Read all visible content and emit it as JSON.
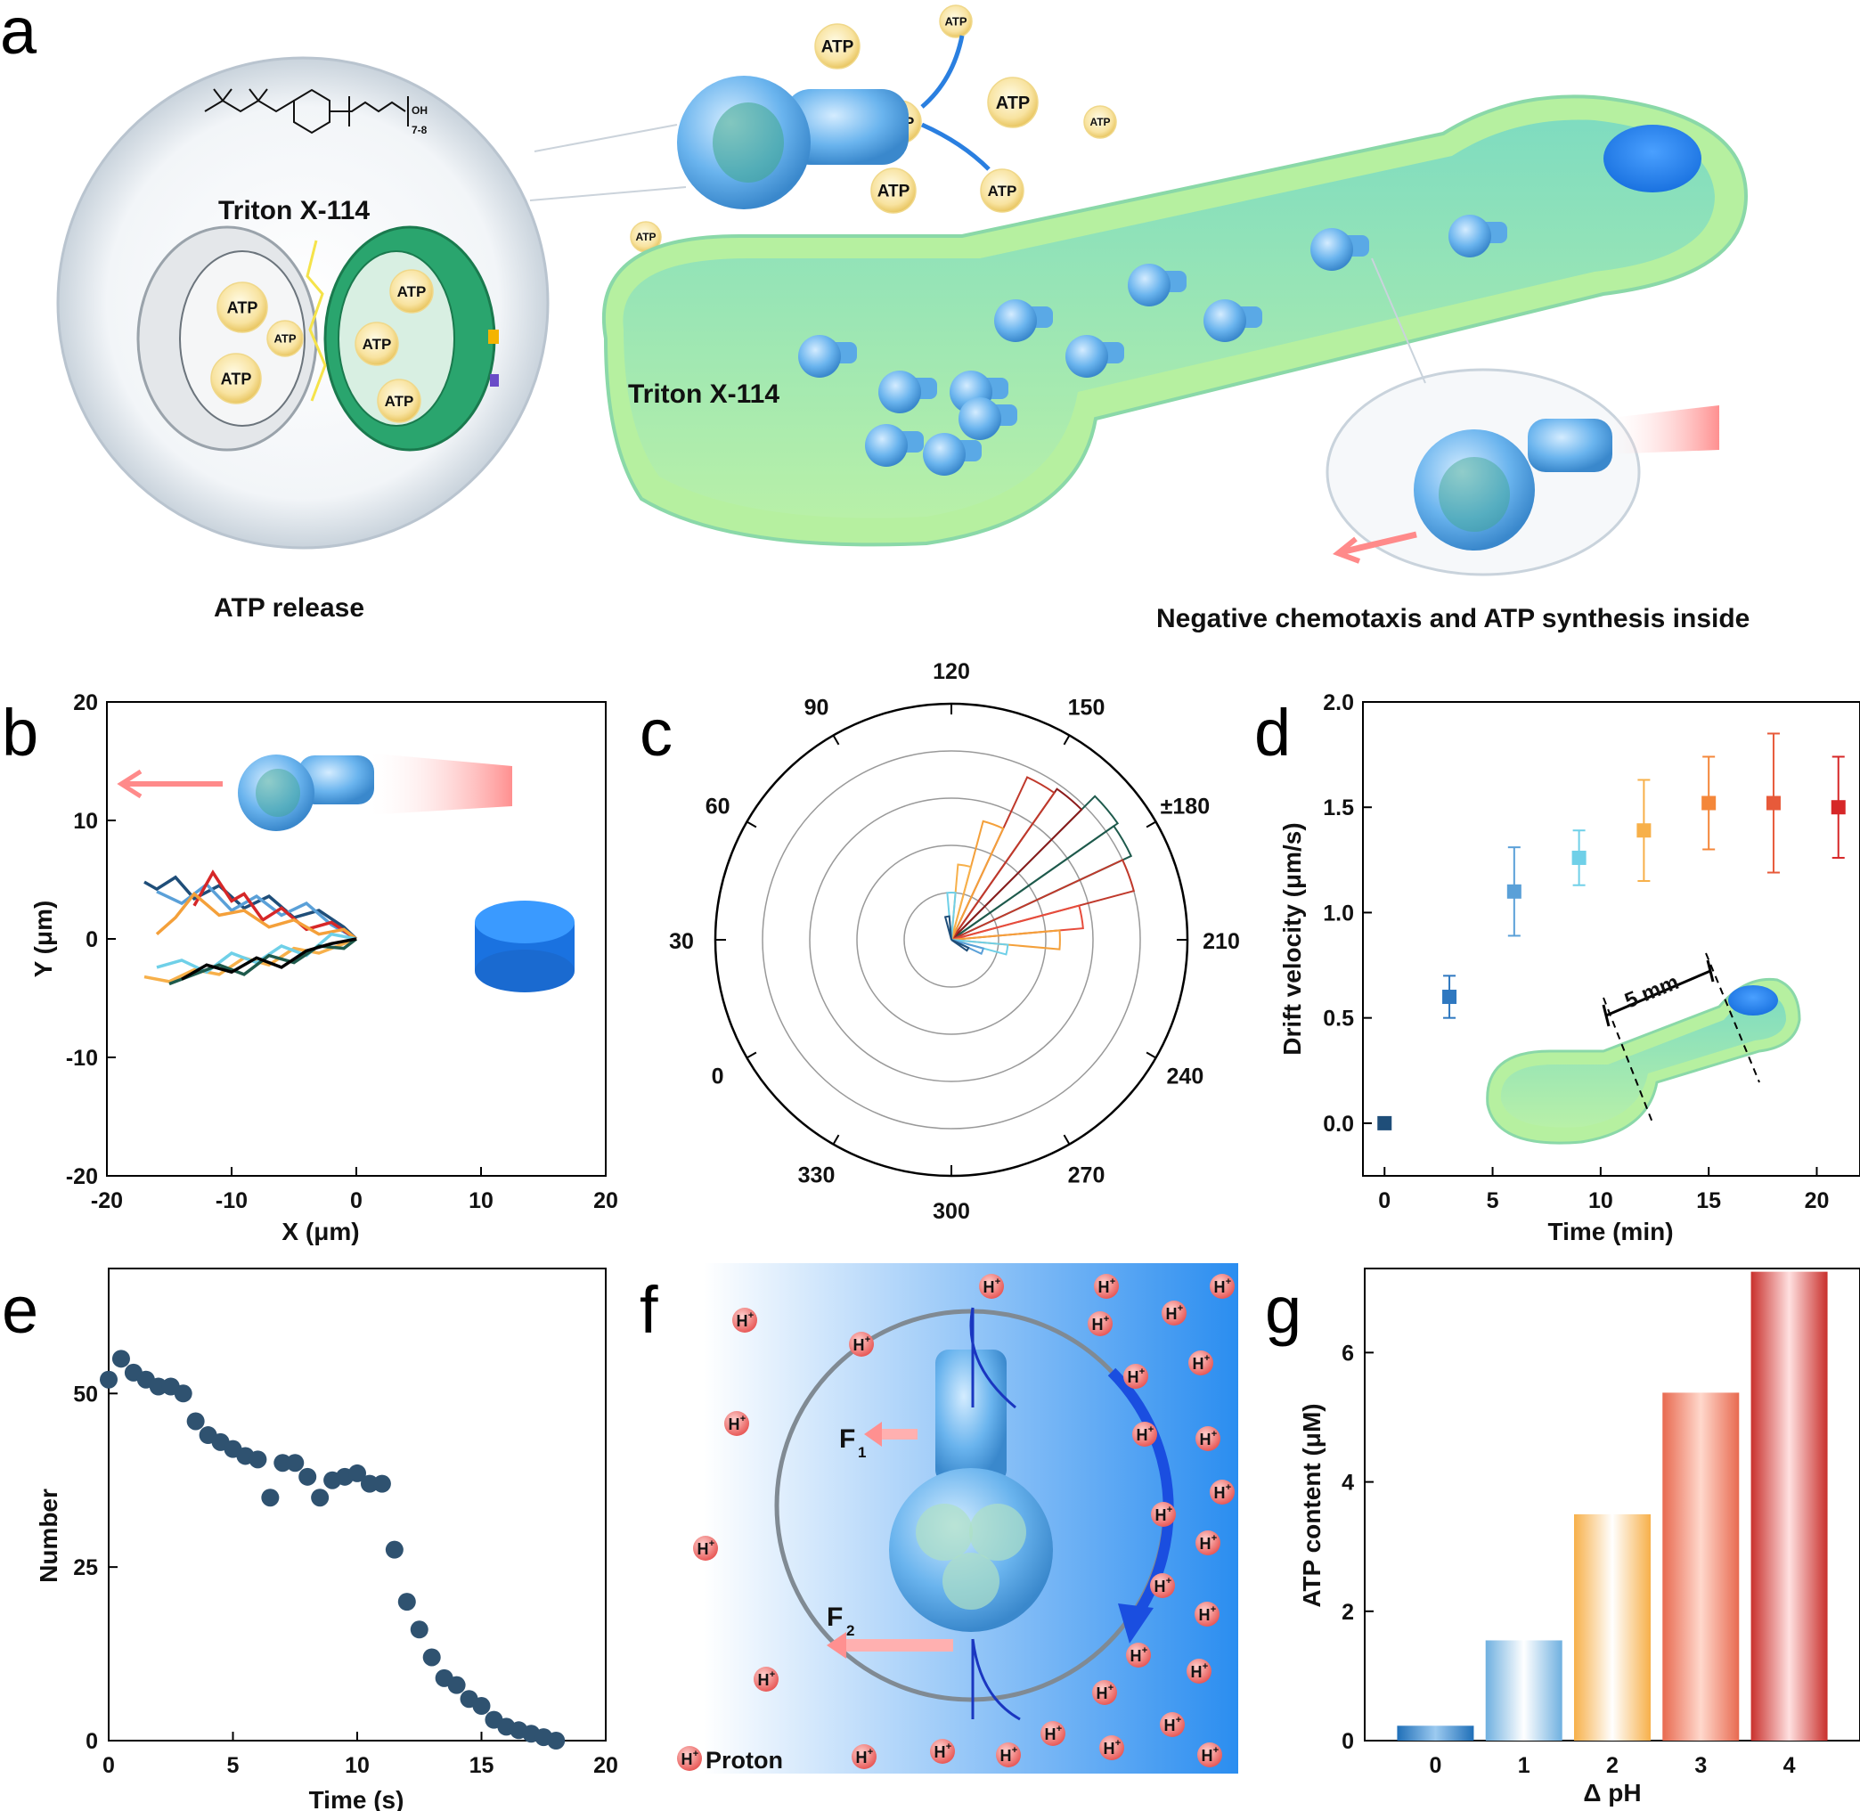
{
  "panels": {
    "a": {
      "letter": "a",
      "molecule_label": "Triton X-114",
      "molecule_oh": "OH",
      "molecule_repeat": "7-8",
      "left_caption": "ATP release",
      "channel_label": "Triton X-114",
      "right_caption": "Negative chemotaxis and ATP synthesis inside",
      "atp_label": "ATP"
    },
    "b": {
      "letter": "b"
    },
    "c": {
      "letter": "c"
    },
    "d": {
      "letter": "d",
      "inset_label": "5 mm"
    },
    "e": {
      "letter": "e"
    },
    "f": {
      "letter": "f",
      "force1": "F",
      "force1_sub": "1",
      "force2": "F",
      "force2_sub": "2",
      "proton_symbol": "H",
      "proton_charge": "+",
      "legend_label": "Proton"
    },
    "g": {
      "letter": "g"
    }
  },
  "colors": {
    "motor_blue": "#5aa9e6",
    "channel_green": "#8fe0b0",
    "gradient_blue": "#2a8df0",
    "proton_red": "#f07a78",
    "dark_dot": "#2f5270"
  },
  "chart_data": [
    {
      "panel": "b",
      "type": "line",
      "xlabel": "X (μm)",
      "ylabel": "Y (μm)",
      "xlim": [
        -20,
        20
      ],
      "ylim": [
        -20,
        20
      ],
      "xticks": [
        "-20",
        "-10",
        "0",
        "10",
        "20"
      ],
      "yticks": [
        "20",
        "10",
        "0",
        "-10",
        "-20"
      ],
      "series": [
        {
          "color": "#1f4e79",
          "x": [
            -17,
            -16,
            -14.5,
            -13,
            -11,
            -9,
            -7,
            -5,
            -3,
            -1,
            0
          ],
          "y": [
            4.8,
            4.2,
            5.2,
            3.4,
            4.5,
            2.6,
            3.6,
            1.8,
            2.4,
            1.0,
            0
          ]
        },
        {
          "color": "#5aa0d8",
          "x": [
            -16,
            -14,
            -12,
            -10,
            -8,
            -6,
            -4,
            -2,
            0
          ],
          "y": [
            4.0,
            3.0,
            4.6,
            2.4,
            3.6,
            2.0,
            3.0,
            1.2,
            0
          ]
        },
        {
          "color": "#d62728",
          "x": [
            -13,
            -11.5,
            -10,
            -9,
            -7.5,
            -6,
            -4,
            -2,
            0
          ],
          "y": [
            2.8,
            5.6,
            3.2,
            3.8,
            1.6,
            2.6,
            0.8,
            1.4,
            0
          ]
        },
        {
          "color": "#f4a03a",
          "x": [
            -16,
            -14.5,
            -13,
            -11,
            -9,
            -7,
            -5,
            -3,
            -1,
            0
          ],
          "y": [
            0.4,
            1.8,
            3.8,
            2.0,
            2.4,
            1.0,
            1.6,
            0.4,
            0.8,
            0
          ]
        },
        {
          "color": "#f7b04a",
          "x": [
            -17,
            -15,
            -13,
            -11,
            -9,
            -7,
            -5,
            -3,
            -1,
            0
          ],
          "y": [
            -3.2,
            -3.6,
            -2.6,
            -3.0,
            -1.6,
            -2.2,
            -0.8,
            -1.2,
            -0.4,
            0
          ]
        },
        {
          "color": "#6fd0e8",
          "x": [
            -16,
            -14,
            -12,
            -10,
            -8,
            -6,
            -4,
            -2,
            0
          ],
          "y": [
            -2.4,
            -1.8,
            -2.8,
            -1.2,
            -2.0,
            -0.6,
            -1.4,
            0.4,
            0
          ]
        },
        {
          "color": "#1e5a4c",
          "x": [
            -15,
            -13,
            -11,
            -9,
            -7,
            -5,
            -3,
            -1,
            0
          ],
          "y": [
            -3.8,
            -3.0,
            -2.2,
            -3.0,
            -1.4,
            -2.0,
            -0.6,
            -0.8,
            0
          ]
        },
        {
          "color": "#000000",
          "x": [
            -14,
            -12,
            -10,
            -8,
            -6,
            -4,
            -2,
            0
          ],
          "y": [
            -3.4,
            -2.2,
            -2.8,
            -1.6,
            -2.4,
            -1.0,
            -0.4,
            0
          ]
        }
      ]
    },
    {
      "panel": "c",
      "type": "polar-histogram",
      "angle_labels": [
        "120",
        "150",
        "±180",
        "210",
        "240",
        "270",
        "300",
        "330",
        "0",
        "30",
        "60",
        "90"
      ],
      "bins": [
        {
          "angle_from": 175,
          "angle_to": 185,
          "r": 4.2,
          "color": "#1e5a4c"
        },
        {
          "angle_from": 165,
          "angle_to": 175,
          "r": 4.3,
          "color": "#1e5a4c"
        },
        {
          "angle_from": 155,
          "angle_to": 165,
          "r": 3.9,
          "color": "#8b1a1a"
        },
        {
          "angle_from": 185,
          "angle_to": 195,
          "r": 4.0,
          "color": "#c0392b"
        },
        {
          "angle_from": 145,
          "angle_to": 155,
          "r": 3.8,
          "color": "#c0392b"
        },
        {
          "angle_from": 195,
          "angle_to": 205,
          "r": 2.8,
          "color": "#e74c3c"
        },
        {
          "angle_from": 135,
          "angle_to": 145,
          "r": 2.6,
          "color": "#f4a03a"
        },
        {
          "angle_from": 205,
          "angle_to": 215,
          "r": 2.3,
          "color": "#f4a03a"
        },
        {
          "angle_from": 125,
          "angle_to": 135,
          "r": 1.6,
          "color": "#f7b04a"
        },
        {
          "angle_from": 215,
          "angle_to": 225,
          "r": 1.2,
          "color": "#6fd0e8"
        },
        {
          "angle_from": 115,
          "angle_to": 125,
          "r": 1.0,
          "color": "#6fd0e8"
        },
        {
          "angle_from": 225,
          "angle_to": 235,
          "r": 0.7,
          "color": "#5aa0d8"
        },
        {
          "angle_from": 105,
          "angle_to": 115,
          "r": 0.5,
          "color": "#1f4e79"
        },
        {
          "angle_from": 235,
          "angle_to": 245,
          "r": 0.4,
          "color": "#1f4e79"
        }
      ]
    },
    {
      "panel": "d",
      "type": "scatter",
      "xlabel": "Time (min)",
      "ylabel": "Drift velocity (μm/s)",
      "xlim": [
        -1,
        22
      ],
      "ylim": [
        -0.25,
        2.0
      ],
      "xticks": [
        "0",
        "5",
        "10",
        "15",
        "20"
      ],
      "yticks": [
        "0.0",
        "0.5",
        "1.0",
        "1.5",
        "2.0"
      ],
      "points": [
        {
          "x": 0,
          "y": 0.0,
          "err": 0.0,
          "color": "#1f4e79"
        },
        {
          "x": 3,
          "y": 0.6,
          "err": 0.1,
          "color": "#2f78c0"
        },
        {
          "x": 6,
          "y": 1.1,
          "err": 0.21,
          "color": "#5aa0d8"
        },
        {
          "x": 9,
          "y": 1.26,
          "err": 0.13,
          "color": "#6fd0e8"
        },
        {
          "x": 12,
          "y": 1.39,
          "err": 0.24,
          "color": "#f7b04a"
        },
        {
          "x": 15,
          "y": 1.52,
          "err": 0.22,
          "color": "#f4873a"
        },
        {
          "x": 18,
          "y": 1.52,
          "err": 0.33,
          "color": "#e75a3a"
        },
        {
          "x": 21,
          "y": 1.5,
          "err": 0.24,
          "color": "#d62728"
        }
      ]
    },
    {
      "panel": "e",
      "type": "scatter",
      "xlabel": "Time (s)",
      "ylabel": "Number",
      "xlim": [
        0,
        20
      ],
      "ylim": [
        0,
        68
      ],
      "xticks": [
        "0",
        "5",
        "10",
        "15",
        "20"
      ],
      "yticks": [
        "0",
        "25",
        "50"
      ],
      "x": [
        0,
        0.5,
        1,
        1.5,
        2,
        2.5,
        3,
        3.5,
        4,
        4.5,
        5,
        5.5,
        6,
        6.5,
        7,
        7.5,
        8,
        8.5,
        9,
        9.5,
        10,
        10.5,
        11,
        11.5,
        12,
        12.5,
        13,
        13.5,
        14,
        14.5,
        15,
        15.5,
        16,
        16.5,
        17,
        17.5,
        18
      ],
      "y": [
        52,
        55,
        53,
        52,
        51,
        51,
        50,
        46,
        44,
        43,
        42,
        41,
        40.5,
        35,
        40,
        40,
        38,
        35,
        37.5,
        38,
        38.5,
        37,
        37,
        27.5,
        20,
        16,
        12,
        9,
        8,
        6,
        5,
        3,
        2,
        1.5,
        1,
        0.5,
        0
      ]
    },
    {
      "panel": "g",
      "type": "bar",
      "xlabel": "Δ pH",
      "ylabel": "ATP content (μM)",
      "ylim": [
        0,
        7.3
      ],
      "yticks": [
        "0",
        "2",
        "4",
        "6"
      ],
      "categories": [
        "0",
        "1",
        "2",
        "3",
        "4"
      ],
      "values": [
        0.23,
        1.55,
        3.5,
        5.38,
        7.25
      ],
      "colors": [
        "#1f6fb8",
        "#6fb0e0",
        "#f7b04a",
        "#e86a50",
        "#c9302c"
      ]
    }
  ]
}
